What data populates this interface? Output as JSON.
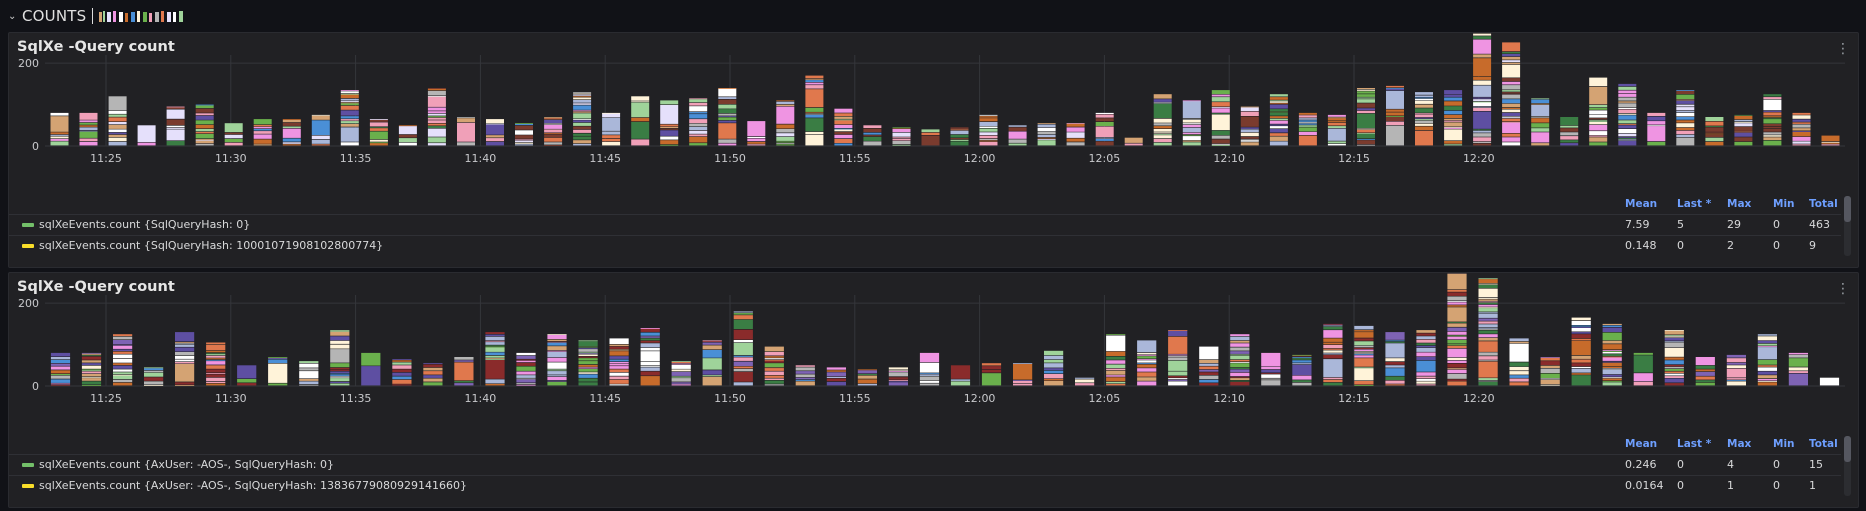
{
  "row": {
    "title": "COUNTS"
  },
  "panels": [
    {
      "title": "SqlXe -Query count",
      "legend": {
        "headers": [
          "Mean",
          "Last *",
          "Max",
          "Min",
          "Total"
        ],
        "rows": [
          {
            "name": "sqlXeEvents.count {SqlQueryHash: 0}",
            "color": "#73bf69",
            "values": [
              "7.59",
              "5",
              "29",
              "0",
              "463"
            ]
          },
          {
            "name": "sqlXeEvents.count {SqlQueryHash: 10001071908102800774}",
            "color": "#fade2a",
            "values": [
              "0.148",
              "0",
              "2",
              "0",
              "9"
            ]
          }
        ]
      }
    },
    {
      "title": "SqlXe -Query count",
      "legend": {
        "headers": [
          "Mean",
          "Last *",
          "Max",
          "Min",
          "Total"
        ],
        "rows": [
          {
            "name": "sqlXeEvents.count {AxUser: -AOS-, SqlQueryHash: 0}",
            "color": "#73bf69",
            "values": [
              "0.246",
              "0",
              "4",
              "0",
              "15"
            ]
          },
          {
            "name": "sqlXeEvents.count {AxUser: -AOS-, SqlQueryHash: 13836779080929141660}",
            "color": "#fade2a",
            "values": [
              "0.0164",
              "0",
              "1",
              "0",
              "1"
            ]
          }
        ]
      }
    }
  ],
  "chart_data": [
    {
      "type": "bar",
      "stacked": true,
      "title": "SqlXe -Query count",
      "x_ticks": [
        "11:25",
        "11:30",
        "11:35",
        "11:40",
        "11:45",
        "11:50",
        "11:55",
        "12:00",
        "12:05",
        "12:10",
        "12:15",
        "12:20"
      ],
      "y_ticks": [
        "0",
        "200"
      ],
      "ylim": [
        0,
        300
      ],
      "totals": [
        80,
        80,
        120,
        50,
        95,
        100,
        55,
        65,
        65,
        75,
        135,
        65,
        50,
        140,
        70,
        65,
        55,
        70,
        130,
        80,
        120,
        110,
        115,
        140,
        60,
        110,
        170,
        90,
        50,
        45,
        40,
        45,
        75,
        50,
        55,
        55,
        80,
        20,
        125,
        110,
        135,
        95,
        125,
        80,
        75,
        140,
        145,
        130,
        135,
        305,
        250,
        115,
        70,
        165,
        150,
        80,
        135,
        70,
        75,
        125,
        80,
        25
      ],
      "palette": [
        "#e5e0fb",
        "#9fd39a",
        "#ef94e2",
        "#ffffff",
        "#d4a373",
        "#5e4fa2",
        "#6ab04c",
        "#c76b2b",
        "#4a8fd6",
        "#fff3d9",
        "#b5b5b5",
        "#f0a0b8",
        "#3a7d44",
        "#e0784d",
        "#aab7d9",
        "#7a3b2e"
      ],
      "grid": true
    },
    {
      "type": "bar",
      "stacked": true,
      "title": "SqlXe -Query count",
      "x_ticks": [
        "11:25",
        "11:30",
        "11:35",
        "11:40",
        "11:45",
        "11:50",
        "11:55",
        "12:00",
        "12:05",
        "12:10",
        "12:15",
        "12:20"
      ],
      "y_ticks": [
        "0",
        "200"
      ],
      "ylim": [
        0,
        300
      ],
      "totals": [
        80,
        80,
        125,
        45,
        130,
        105,
        50,
        70,
        60,
        135,
        80,
        65,
        55,
        70,
        130,
        80,
        125,
        110,
        115,
        140,
        60,
        110,
        180,
        95,
        50,
        45,
        40,
        45,
        80,
        50,
        55,
        55,
        85,
        20,
        125,
        110,
        135,
        95,
        125,
        80,
        75,
        150,
        145,
        130,
        135,
        305,
        260,
        115,
        70,
        165,
        150,
        80,
        135,
        70,
        75,
        125,
        80,
        20
      ],
      "palette": [
        "#7e63b4",
        "#ef94e2",
        "#fff3d9",
        "#6ab04c",
        "#c76b2b",
        "#ffffff",
        "#b5b5b5",
        "#d4a373",
        "#4a8fd6",
        "#9fd39a",
        "#e0784d",
        "#8a2b2b",
        "#5e4fa2",
        "#f0a0b8",
        "#3a7d44",
        "#aab7d9"
      ],
      "grid": true
    }
  ]
}
